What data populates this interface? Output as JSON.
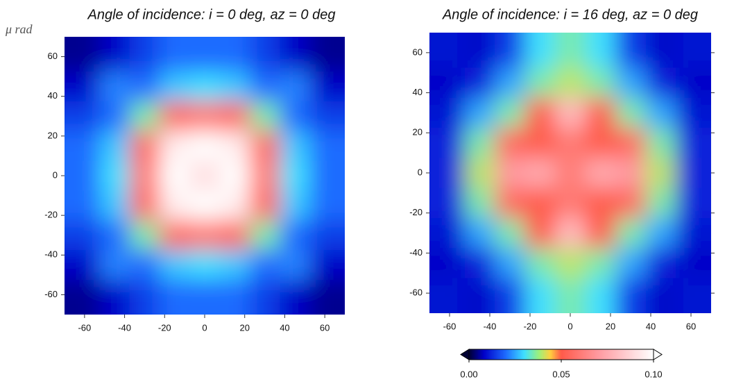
{
  "chart_data": [
    {
      "type": "heatmap",
      "title": "Angle of incidence: i = 0 deg, az = 0 deg",
      "ylabel": "μ rad",
      "x": [
        -60,
        -45,
        -30,
        -15,
        0,
        15,
        30,
        45,
        60
      ],
      "y": [
        60,
        45,
        30,
        15,
        0,
        -15,
        -30,
        -45,
        -60
      ],
      "z": [
        [
          0.005,
          0.008,
          0.015,
          0.02,
          0.02,
          0.02,
          0.015,
          0.008,
          0.005
        ],
        [
          0.008,
          0.022,
          0.02,
          0.028,
          0.03,
          0.028,
          0.02,
          0.022,
          0.008
        ],
        [
          0.015,
          0.02,
          0.035,
          0.055,
          0.06,
          0.055,
          0.035,
          0.02,
          0.015
        ],
        [
          0.02,
          0.028,
          0.055,
          0.095,
          0.1,
          0.095,
          0.055,
          0.028,
          0.02
        ],
        [
          0.02,
          0.03,
          0.06,
          0.1,
          0.09,
          0.1,
          0.06,
          0.03,
          0.02
        ],
        [
          0.02,
          0.028,
          0.055,
          0.095,
          0.1,
          0.095,
          0.055,
          0.028,
          0.02
        ],
        [
          0.015,
          0.02,
          0.035,
          0.055,
          0.06,
          0.055,
          0.035,
          0.02,
          0.015
        ],
        [
          0.008,
          0.022,
          0.02,
          0.028,
          0.03,
          0.028,
          0.02,
          0.022,
          0.008
        ],
        [
          0.005,
          0.008,
          0.015,
          0.02,
          0.02,
          0.02,
          0.015,
          0.008,
          0.005
        ]
      ],
      "xlim": [
        -70,
        70
      ],
      "ylim": [
        -70,
        70
      ],
      "xticks": [
        -60,
        -40,
        -20,
        0,
        20,
        40,
        60
      ],
      "yticks": [
        -60,
        -40,
        -20,
        0,
        20,
        40,
        60
      ]
    },
    {
      "type": "heatmap",
      "title": "Angle of incidence: i = 16 deg, az = 0 deg",
      "x": [
        -60,
        -45,
        -30,
        -15,
        0,
        15,
        30,
        45,
        60
      ],
      "y": [
        60,
        45,
        30,
        15,
        0,
        -15,
        -30,
        -45,
        -60
      ],
      "z": [
        [
          0.01,
          0.008,
          0.015,
          0.03,
          0.035,
          0.03,
          0.015,
          0.008,
          0.01
        ],
        [
          0.008,
          0.012,
          0.025,
          0.035,
          0.04,
          0.035,
          0.025,
          0.012,
          0.008
        ],
        [
          0.01,
          0.025,
          0.035,
          0.05,
          0.08,
          0.05,
          0.035,
          0.025,
          0.01
        ],
        [
          0.012,
          0.035,
          0.055,
          0.05,
          0.06,
          0.05,
          0.055,
          0.035,
          0.012
        ],
        [
          0.012,
          0.04,
          0.07,
          0.075,
          0.06,
          0.075,
          0.07,
          0.04,
          0.012
        ],
        [
          0.012,
          0.035,
          0.055,
          0.05,
          0.06,
          0.05,
          0.055,
          0.035,
          0.012
        ],
        [
          0.01,
          0.025,
          0.035,
          0.05,
          0.08,
          0.05,
          0.035,
          0.025,
          0.01
        ],
        [
          0.008,
          0.012,
          0.025,
          0.035,
          0.04,
          0.035,
          0.025,
          0.012,
          0.008
        ],
        [
          0.01,
          0.008,
          0.015,
          0.03,
          0.035,
          0.03,
          0.015,
          0.008,
          0.01
        ]
      ],
      "xlim": [
        -70,
        70
      ],
      "ylim": [
        -70,
        70
      ],
      "xticks": [
        -60,
        -40,
        -20,
        0,
        20,
        40,
        60
      ],
      "yticks": [
        -60,
        -40,
        -20,
        0,
        20,
        40,
        60
      ],
      "colorbar": {
        "lim": [
          0,
          0.1
        ],
        "ticks": [
          {
            "value": 0,
            "label": "0.00"
          },
          0.05,
          {
            "value": 0.1,
            "label": "0.10"
          }
        ],
        "colormap": [
          [
            0,
            "#000033"
          ],
          [
            0.008,
            "#0000c8"
          ],
          [
            0.02,
            "#1e6cff"
          ],
          [
            0.03,
            "#3fe0ff"
          ],
          [
            0.038,
            "#9ef07a"
          ],
          [
            0.044,
            "#ffd040"
          ],
          [
            0.05,
            "#ff5a4a"
          ],
          [
            0.07,
            "#ff9aa0"
          ],
          [
            0.1,
            "#ffffff"
          ]
        ]
      }
    }
  ]
}
